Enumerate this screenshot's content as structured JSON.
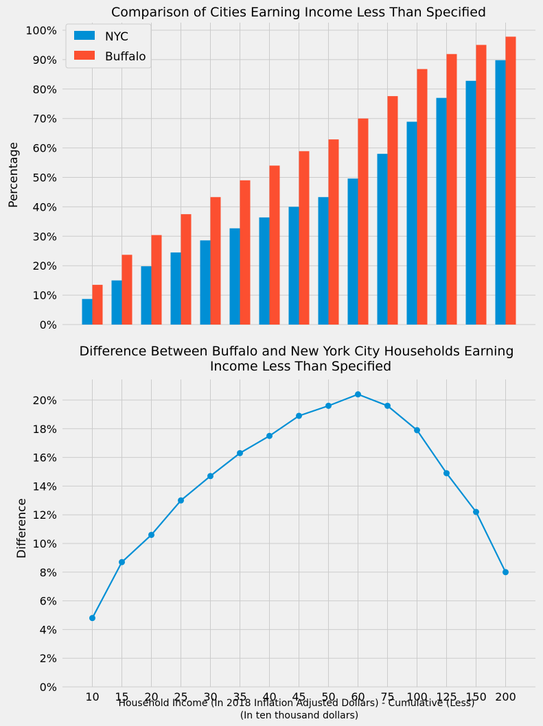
{
  "chart_data": [
    {
      "type": "bar",
      "title": "Comparison of Cities Earning Income Less Than Specified",
      "ylabel": "Percentage",
      "xlabel": "",
      "ylim": [
        0,
        100
      ],
      "yticks": [
        "0%",
        "10%",
        "20%",
        "30%",
        "40%",
        "50%",
        "60%",
        "70%",
        "80%",
        "90%",
        "100%"
      ],
      "grid": true,
      "legend_position": "top-left",
      "categories": [
        "10",
        "15",
        "20",
        "25",
        "30",
        "35",
        "40",
        "45",
        "50",
        "60",
        "75",
        "100",
        "125",
        "150",
        "200"
      ],
      "series": [
        {
          "name": "NYC",
          "color": "#008fd5",
          "values": [
            8.7,
            15.0,
            19.8,
            24.5,
            28.6,
            32.7,
            36.4,
            40.0,
            43.3,
            49.6,
            58.0,
            68.9,
            77.0,
            82.8,
            89.8
          ]
        },
        {
          "name": "Buffalo",
          "color": "#fc4f30",
          "values": [
            13.5,
            23.7,
            30.4,
            37.5,
            43.3,
            49.0,
            54.0,
            58.9,
            62.9,
            70.0,
            77.6,
            86.8,
            91.9,
            95.0,
            97.8
          ]
        }
      ]
    },
    {
      "type": "line",
      "title": "Difference Between Buffalo and New York City Households Earning",
      "title_line2": "Income Less Than Specified",
      "ylabel": "Difference",
      "xlabel": "Household Income (In 2018 Inflation Adjusted Dollars) - Cumulative (Less)",
      "xlabel_line2": "(In ten thousand dollars)",
      "ylim": [
        0,
        21
      ],
      "yticks": [
        "0%",
        "2%",
        "4%",
        "6%",
        "8%",
        "10%",
        "12%",
        "14%",
        "16%",
        "18%",
        "20%"
      ],
      "grid": true,
      "categories": [
        "10",
        "15",
        "20",
        "25",
        "30",
        "35",
        "40",
        "45",
        "50",
        "60",
        "75",
        "100",
        "125",
        "150",
        "200"
      ],
      "series": [
        {
          "color": "#008fd5",
          "values": [
            4.8,
            8.7,
            10.6,
            13.0,
            14.7,
            16.3,
            17.5,
            18.9,
            19.6,
            20.4,
            19.6,
            17.9,
            14.9,
            12.2,
            8.0
          ]
        }
      ]
    }
  ]
}
